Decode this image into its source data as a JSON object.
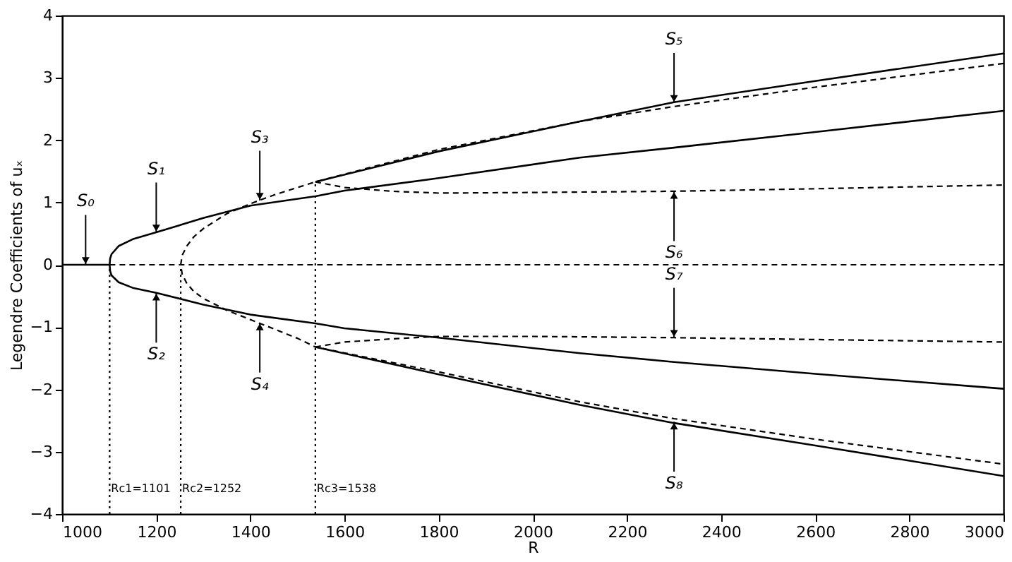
{
  "chart_data": {
    "type": "line",
    "xlabel": "R",
    "ylabel": "Legendre Coefficients of uₓ",
    "xlim": [
      1000,
      3000
    ],
    "xticks": [
      1000,
      1200,
      1400,
      1600,
      1800,
      2000,
      2200,
      2400,
      2600,
      2800,
      3000
    ],
    "ylim": [
      -4,
      4
    ],
    "yticks": [
      -4,
      -3,
      -2,
      -1,
      0,
      1,
      2,
      3,
      4
    ],
    "grid": false,
    "marker": "none",
    "series": [
      {
        "color": "#000000",
        "line_style": "solid",
        "x": [
          1000,
          1101
        ],
        "values": [
          0,
          0
        ]
      },
      {
        "color": "#000000",
        "line_style": "dashed",
        "x": [
          1101,
          3000
        ],
        "values": [
          0,
          0
        ]
      },
      {
        "color": "#000000",
        "line_style": "solid",
        "x": [
          3000,
          2600,
          2300,
          2100,
          1800,
          1600,
          1538,
          1400,
          1300,
          1200,
          1150,
          1120,
          1105,
          1102,
          1101,
          1102,
          1105,
          1120,
          1150,
          1200,
          1300,
          1400,
          1538,
          1600,
          1800,
          2100,
          2300,
          2600,
          3000
        ],
        "values": [
          2.47,
          2.13,
          1.88,
          1.72,
          1.39,
          1.19,
          1.1,
          0.95,
          0.75,
          0.52,
          0.41,
          0.3,
          0.17,
          0.1,
          0,
          -0.1,
          -0.17,
          -0.28,
          -0.37,
          -0.45,
          -0.64,
          -0.8,
          -0.94,
          -1.02,
          -1.17,
          -1.42,
          -1.56,
          -1.75,
          -1.99
        ]
      },
      {
        "color": "#000000",
        "line_style": "dashed",
        "x": [
          3000,
          2600,
          2300,
          2100,
          1800,
          1538,
          1500,
          1450,
          1400,
          1350,
          1300,
          1280,
          1265,
          1255,
          1252,
          1255,
          1265,
          1280,
          1300,
          1350,
          1400,
          1450,
          1500,
          1538,
          1800,
          2100,
          2300,
          2600,
          3000
        ],
        "values": [
          3.23,
          2.85,
          2.54,
          2.3,
          1.85,
          1.33,
          1.24,
          1.12,
          0.98,
          0.82,
          0.58,
          0.45,
          0.3,
          0.15,
          0,
          -0.15,
          -0.3,
          -0.43,
          -0.54,
          -0.73,
          -0.88,
          -1.03,
          -1.18,
          -1.32,
          -1.72,
          -2.2,
          -2.47,
          -2.8,
          -3.2
        ]
      },
      {
        "color": "#000000",
        "line_style": "solid",
        "x": [
          1538,
          1800,
          2100,
          2300,
          2600,
          3000
        ],
        "values": [
          1.33,
          1.82,
          2.3,
          2.61,
          2.95,
          3.39
        ]
      },
      {
        "color": "#000000",
        "line_style": "dashed",
        "x": [
          1538,
          1600,
          1700,
          1800,
          2000,
          2300,
          2600,
          3000
        ],
        "values": [
          1.33,
          1.24,
          1.18,
          1.15,
          1.16,
          1.18,
          1.22,
          1.28
        ]
      },
      {
        "color": "#000000",
        "line_style": "dashed",
        "x": [
          1538,
          1600,
          1700,
          1800,
          2000,
          2300,
          2600,
          3000
        ],
        "values": [
          -1.32,
          -1.24,
          -1.19,
          -1.15,
          -1.15,
          -1.17,
          -1.2,
          -1.24
        ]
      },
      {
        "color": "#000000",
        "line_style": "solid",
        "x": [
          1538,
          1800,
          2100,
          2300,
          2600,
          3000
        ],
        "values": [
          -1.32,
          -1.76,
          -2.25,
          -2.54,
          -2.9,
          -3.39
        ]
      },
      {
        "color": "#000000",
        "line_style": "dotted",
        "x": [
          1101,
          1101
        ],
        "values": [
          -4,
          0
        ]
      },
      {
        "color": "#000000",
        "line_style": "dotted",
        "x": [
          1252,
          1252
        ],
        "values": [
          -4,
          0
        ]
      },
      {
        "color": "#000000",
        "line_style": "dotted",
        "x": [
          1538,
          1538
        ],
        "values": [
          -4,
          1.33
        ]
      }
    ],
    "annotations": [
      {
        "text": "S₀",
        "x": 1050,
        "y": 0
      },
      {
        "text": "S₁",
        "x": 1200,
        "y": 0.52
      },
      {
        "text": "S₂",
        "x": 1200,
        "y": -0.45
      },
      {
        "text": "S₃",
        "x": 1420,
        "y": 1.03
      },
      {
        "text": "S₄",
        "x": 1420,
        "y": -0.93
      },
      {
        "text": "S₅",
        "x": 2300,
        "y": 2.6
      },
      {
        "text": "S₆",
        "x": 2300,
        "y": 1.18
      },
      {
        "text": "S₇",
        "x": 2300,
        "y": -1.17
      },
      {
        "text": "S₈",
        "x": 2300,
        "y": -2.52
      },
      {
        "text": "Rc1=1101",
        "x": 1101,
        "y": -3.6
      },
      {
        "text": "Rc2=1252",
        "x": 1252,
        "y": -3.6
      },
      {
        "text": "Rc3=1538",
        "x": 1538,
        "y": -3.6
      }
    ]
  }
}
